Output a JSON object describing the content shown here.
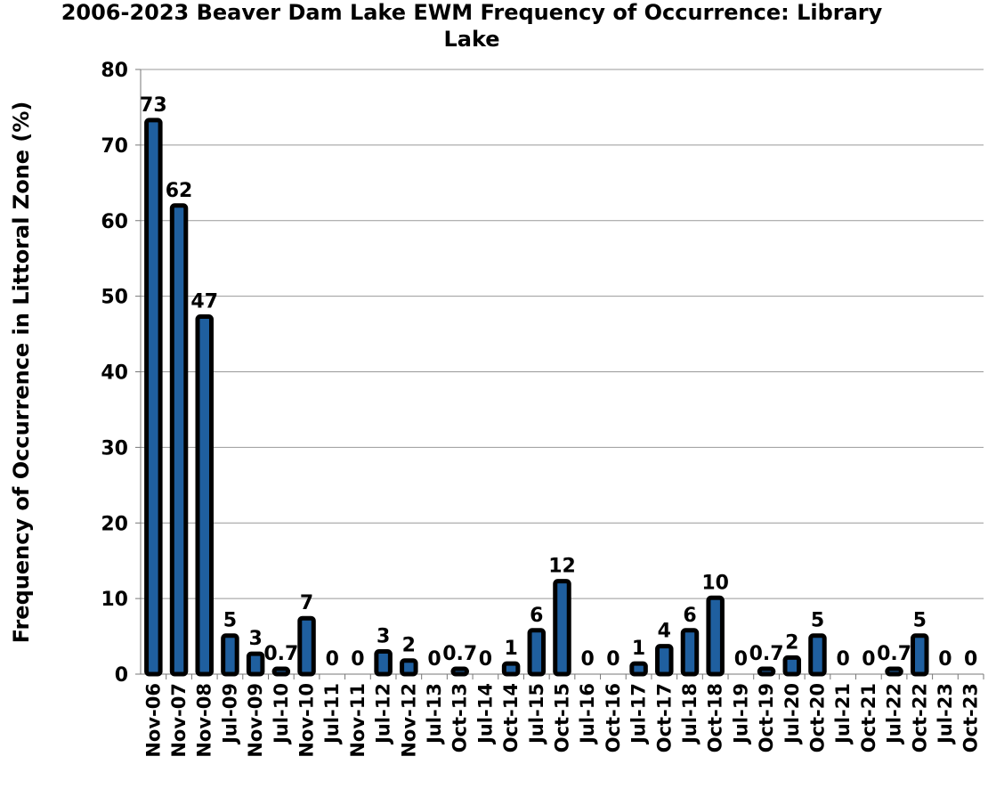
{
  "chart_data": {
    "type": "bar",
    "title": "2006-2023 Beaver Dam Lake EWM Frequency of Occurrence:  Library Lake",
    "y_label": "Frequency of Occurrence in Littoral Zone (%)",
    "categories": [
      "Nov-06",
      "Nov-07",
      "Nov-08",
      "Jul-09",
      "Nov-09",
      "Jul-10",
      "Nov-10",
      "Jul-11",
      "Nov-11",
      "Jul-12",
      "Nov-12",
      "Jul-13",
      "Oct-13",
      "Jul-14",
      "Oct-14",
      "Jul-15",
      "Oct-15",
      "Jul-16",
      "Oct-16",
      "Jul-17",
      "Oct-17",
      "Jul-18",
      "Oct-18",
      "Jul-19",
      "Oct-19",
      "Jul-20",
      "Oct-20",
      "Jul-21",
      "Oct-21",
      "Jul-22",
      "Oct-22",
      "Jul-23",
      "Oct-23"
    ],
    "values": [
      73.3,
      62,
      47.3,
      5.1,
      2.7,
      0.7,
      7.4,
      0,
      0,
      3.0,
      1.8,
      0,
      0.7,
      0,
      1.4,
      5.8,
      12.3,
      0,
      0,
      1.4,
      3.7,
      5.8,
      10.1,
      0,
      0.7,
      2.2,
      5.1,
      0,
      0,
      0.7,
      5.1,
      0,
      0
    ],
    "value_labels": [
      "73",
      "62",
      "47",
      "5",
      "3",
      "0.7",
      "7",
      "0",
      "0",
      "3",
      "2",
      "0",
      "0.7",
      "0",
      "1",
      "6",
      "12",
      "0",
      "0",
      "1",
      "4",
      "6",
      "10",
      "0",
      "0.7",
      "2",
      "5",
      "0",
      "0",
      "0.7",
      "5",
      "0",
      "0"
    ],
    "color": "#1f5f9f",
    "edge_color": "#000000",
    "ylim": [
      0,
      80
    ],
    "yticks": [
      0,
      10,
      20,
      30,
      40,
      50,
      60,
      70,
      80
    ],
    "grid": true
  }
}
